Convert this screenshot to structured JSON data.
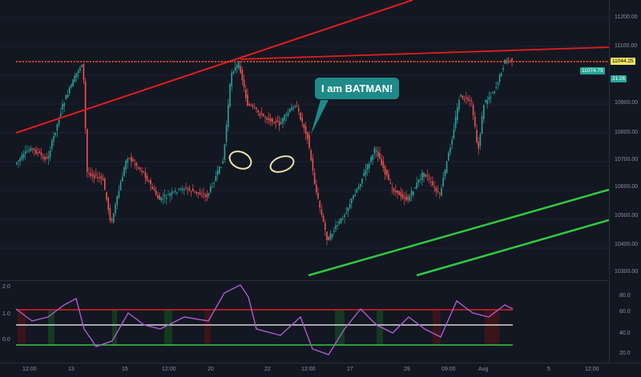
{
  "annotation": {
    "text": "I am BATMAN!"
  },
  "price_axis": {
    "ticks": [
      "11200.00",
      "11100.00",
      "10900.00",
      "10800.00",
      "10700.00",
      "10600.00",
      "10500.00",
      "10400.00",
      "10300.00"
    ],
    "last_price": "11044.25",
    "label_2": "11074.79",
    "label_3": "21:26"
  },
  "indicator_axis": {
    "left_ticks": [
      "2.0",
      "1.0",
      "0.0"
    ],
    "right_ticks": [
      "80.0",
      "60.0",
      "40.0",
      "20.0"
    ]
  },
  "time_axis": {
    "labels": [
      "12:00",
      "13",
      "15",
      "12:00",
      "20",
      "22",
      "12:00",
      "27",
      "29",
      "09:00",
      "Aug",
      "5",
      "12:00"
    ]
  },
  "colors": {
    "background": "#131722",
    "up": "#26a69a",
    "down": "#ef5350",
    "trendline_red": "#e01e1e",
    "trendline_green": "#2ecc40",
    "rsi": "#b05ad0",
    "batman_bg": "#1e8a8a"
  }
}
